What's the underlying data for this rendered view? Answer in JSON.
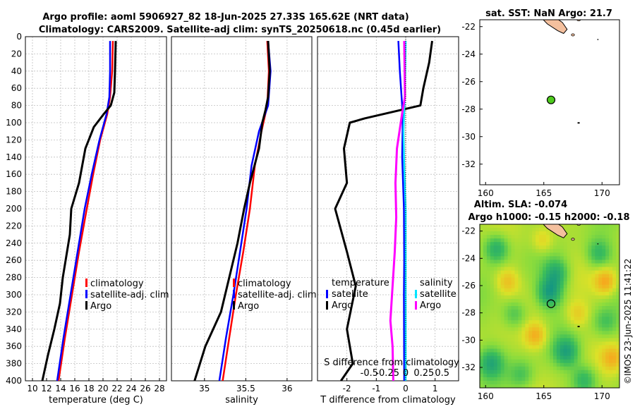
{
  "title": {
    "line1": "Argo profile: aoml 5906927_82 18-Jun-2025 27.33S 165.62E (NRT data)",
    "line2": "Climatology: CARS2009. Satellite-adj clim: synTS_20250618.nc (0.45d earlier)"
  },
  "footer": "©IMOS 23-Jun-2025 11:41:22",
  "colors": {
    "argo": "#000000",
    "climatology": "#ff0000",
    "satellite": "#0000ff",
    "sal_satellite": "#00e5ff",
    "sal_argo": "#ff00ff",
    "grid": "#bfbfbf",
    "land": "#f4c09e",
    "marker": "#4ecb1e"
  },
  "chart_data": [
    {
      "type": "line",
      "name": "temperature-profile",
      "xlabel": "temperature (deg C)",
      "xlim": [
        9,
        29
      ],
      "xticks": [
        10,
        12,
        14,
        16,
        18,
        20,
        22,
        24,
        26,
        28
      ],
      "ylim": [
        0,
        400
      ],
      "yticks": [
        0,
        20,
        40,
        60,
        80,
        100,
        120,
        140,
        160,
        180,
        200,
        220,
        240,
        260,
        280,
        300,
        320,
        340,
        360,
        380,
        400
      ],
      "legend": [
        "climatology",
        "satellite-adj. clim",
        "Argo"
      ],
      "series": [
        {
          "name": "climatology",
          "color": "#ff0000",
          "depth": [
            5,
            40,
            70,
            90,
            120,
            160,
            200,
            250,
            300,
            350,
            400
          ],
          "values": [
            21.4,
            21.3,
            21.0,
            20.6,
            19.6,
            18.6,
            17.7,
            16.6,
            15.6,
            14.6,
            13.7
          ]
        },
        {
          "name": "satellite-adj. clim",
          "color": "#0000ff",
          "depth": [
            5,
            40,
            70,
            90,
            120,
            160,
            200,
            250,
            300,
            350,
            400
          ],
          "values": [
            21.0,
            21.0,
            20.9,
            20.5,
            19.5,
            18.4,
            17.4,
            16.4,
            15.4,
            14.4,
            13.5
          ]
        },
        {
          "name": "Argo",
          "color": "#000000",
          "depth": [
            5,
            40,
            65,
            80,
            90,
            105,
            130,
            170,
            200,
            230,
            250,
            280,
            310,
            340,
            370,
            400
          ],
          "values": [
            21.8,
            21.7,
            21.6,
            21.1,
            20.1,
            18.7,
            17.5,
            16.6,
            15.5,
            15.3,
            14.9,
            14.3,
            13.9,
            13.1,
            12.2,
            11.4
          ]
        }
      ]
    },
    {
      "type": "line",
      "name": "salinity-profile",
      "xlabel": "salinity",
      "xlim": [
        34.6,
        36.3
      ],
      "xticks": [
        35,
        35.5,
        36
      ],
      "xticklabels": [
        "35",
        "35.5",
        "36"
      ],
      "ylim": [
        0,
        400
      ],
      "legend": [
        "climatology",
        "satellite-adj. clim",
        "Argo"
      ],
      "series": [
        {
          "name": "climatology",
          "color": "#ff0000",
          "depth": [
            5,
            40,
            80,
            110,
            150,
            200,
            250,
            300,
            350,
            400
          ],
          "values": [
            35.76,
            35.78,
            35.76,
            35.69,
            35.61,
            35.55,
            35.47,
            35.38,
            35.3,
            35.22
          ]
        },
        {
          "name": "satellite-adj. clim",
          "color": "#0000ff",
          "depth": [
            5,
            40,
            80,
            110,
            150,
            200,
            250,
            300,
            350,
            400
          ],
          "values": [
            35.77,
            35.8,
            35.77,
            35.66,
            35.57,
            35.51,
            35.43,
            35.35,
            35.26,
            35.18
          ]
        },
        {
          "name": "Argo",
          "color": "#000000",
          "depth": [
            5,
            40,
            70,
            85,
            100,
            130,
            170,
            200,
            240,
            280,
            320,
            360,
            400
          ],
          "values": [
            35.77,
            35.79,
            35.77,
            35.74,
            35.7,
            35.66,
            35.55,
            35.48,
            35.4,
            35.3,
            35.2,
            35.01,
            34.88
          ]
        }
      ]
    },
    {
      "type": "line",
      "name": "difference-profile",
      "xlabel": "T difference from climatology",
      "xlim": [
        -3,
        1.8
      ],
      "xticks": [
        -2,
        -1,
        0,
        1
      ],
      "xticklabels": [
        "-2",
        "-1",
        "0",
        "1"
      ],
      "top_axis_label": "S difference from climatology",
      "top_ticks": [
        "-0.5",
        "-0.25",
        "0",
        "0.25",
        "0.5"
      ],
      "ylim": [
        0,
        400
      ],
      "legend_left": [
        "temperature",
        "satellite",
        "Argo"
      ],
      "legend_right": [
        "salinity",
        "satellite",
        "Argo"
      ],
      "series": [
        {
          "name": "temperature satellite",
          "color": "#0000ff",
          "depth": [
            5,
            40,
            80,
            100,
            140,
            200,
            260,
            300,
            400
          ],
          "values": [
            -0.25,
            -0.2,
            -0.12,
            -0.1,
            -0.12,
            -0.06,
            -0.05,
            -0.06,
            -0.05
          ]
        },
        {
          "name": "temperature Argo",
          "color": "#000000",
          "depth": [
            5,
            30,
            60,
            80,
            95,
            100,
            130,
            170,
            200,
            250,
            290,
            340,
            380,
            400
          ],
          "values": [
            0.9,
            0.8,
            0.6,
            0.5,
            -1.4,
            -1.9,
            -2.1,
            -2.0,
            -2.4,
            -2.0,
            -1.7,
            -2.0,
            -1.8,
            -2.2
          ]
        },
        {
          "name": "salinity satellite",
          "color": "#00e5ff",
          "depth": [
            5,
            60,
            110,
            150,
            200,
            260,
            320,
            400
          ],
          "values": [
            0.0,
            -0.01,
            -0.03,
            -0.02,
            0.0,
            0.0,
            0.0,
            0.0
          ]
        },
        {
          "name": "salinity Argo",
          "color": "#ff00ff",
          "depth": [
            5,
            70,
            90,
            130,
            170,
            210,
            250,
            290,
            330,
            360,
            400
          ],
          "values": [
            -0.02,
            -0.01,
            -0.05,
            -0.12,
            -0.14,
            -0.13,
            -0.15,
            -0.18,
            -0.21,
            -0.18,
            -0.17
          ]
        }
      ]
    },
    {
      "type": "heatmap",
      "name": "sst-map",
      "title": "sat. SST: NaN Argo: 21.7",
      "xlim": [
        159.5,
        171.5
      ],
      "ylim": [
        -33.5,
        -21.5
      ],
      "xticks": [
        160,
        165,
        170
      ],
      "yticks": [
        -22,
        -24,
        -26,
        -28,
        -30,
        -32
      ],
      "argo_position": {
        "lon": 165.62,
        "lat": -27.33
      }
    },
    {
      "type": "heatmap",
      "name": "sla-map",
      "title": "Altim. SLA: -0.074",
      "subtitle": "Argo h1000: -0.15 h2000: -0.18",
      "xlim": [
        159.5,
        171.5
      ],
      "ylim": [
        -33.5,
        -21.5
      ],
      "xticks": [
        160,
        165,
        170
      ],
      "yticks": [
        -22,
        -24,
        -26,
        -28,
        -30,
        -32
      ],
      "argo_position": {
        "lon": 165.62,
        "lat": -27.33
      }
    }
  ]
}
